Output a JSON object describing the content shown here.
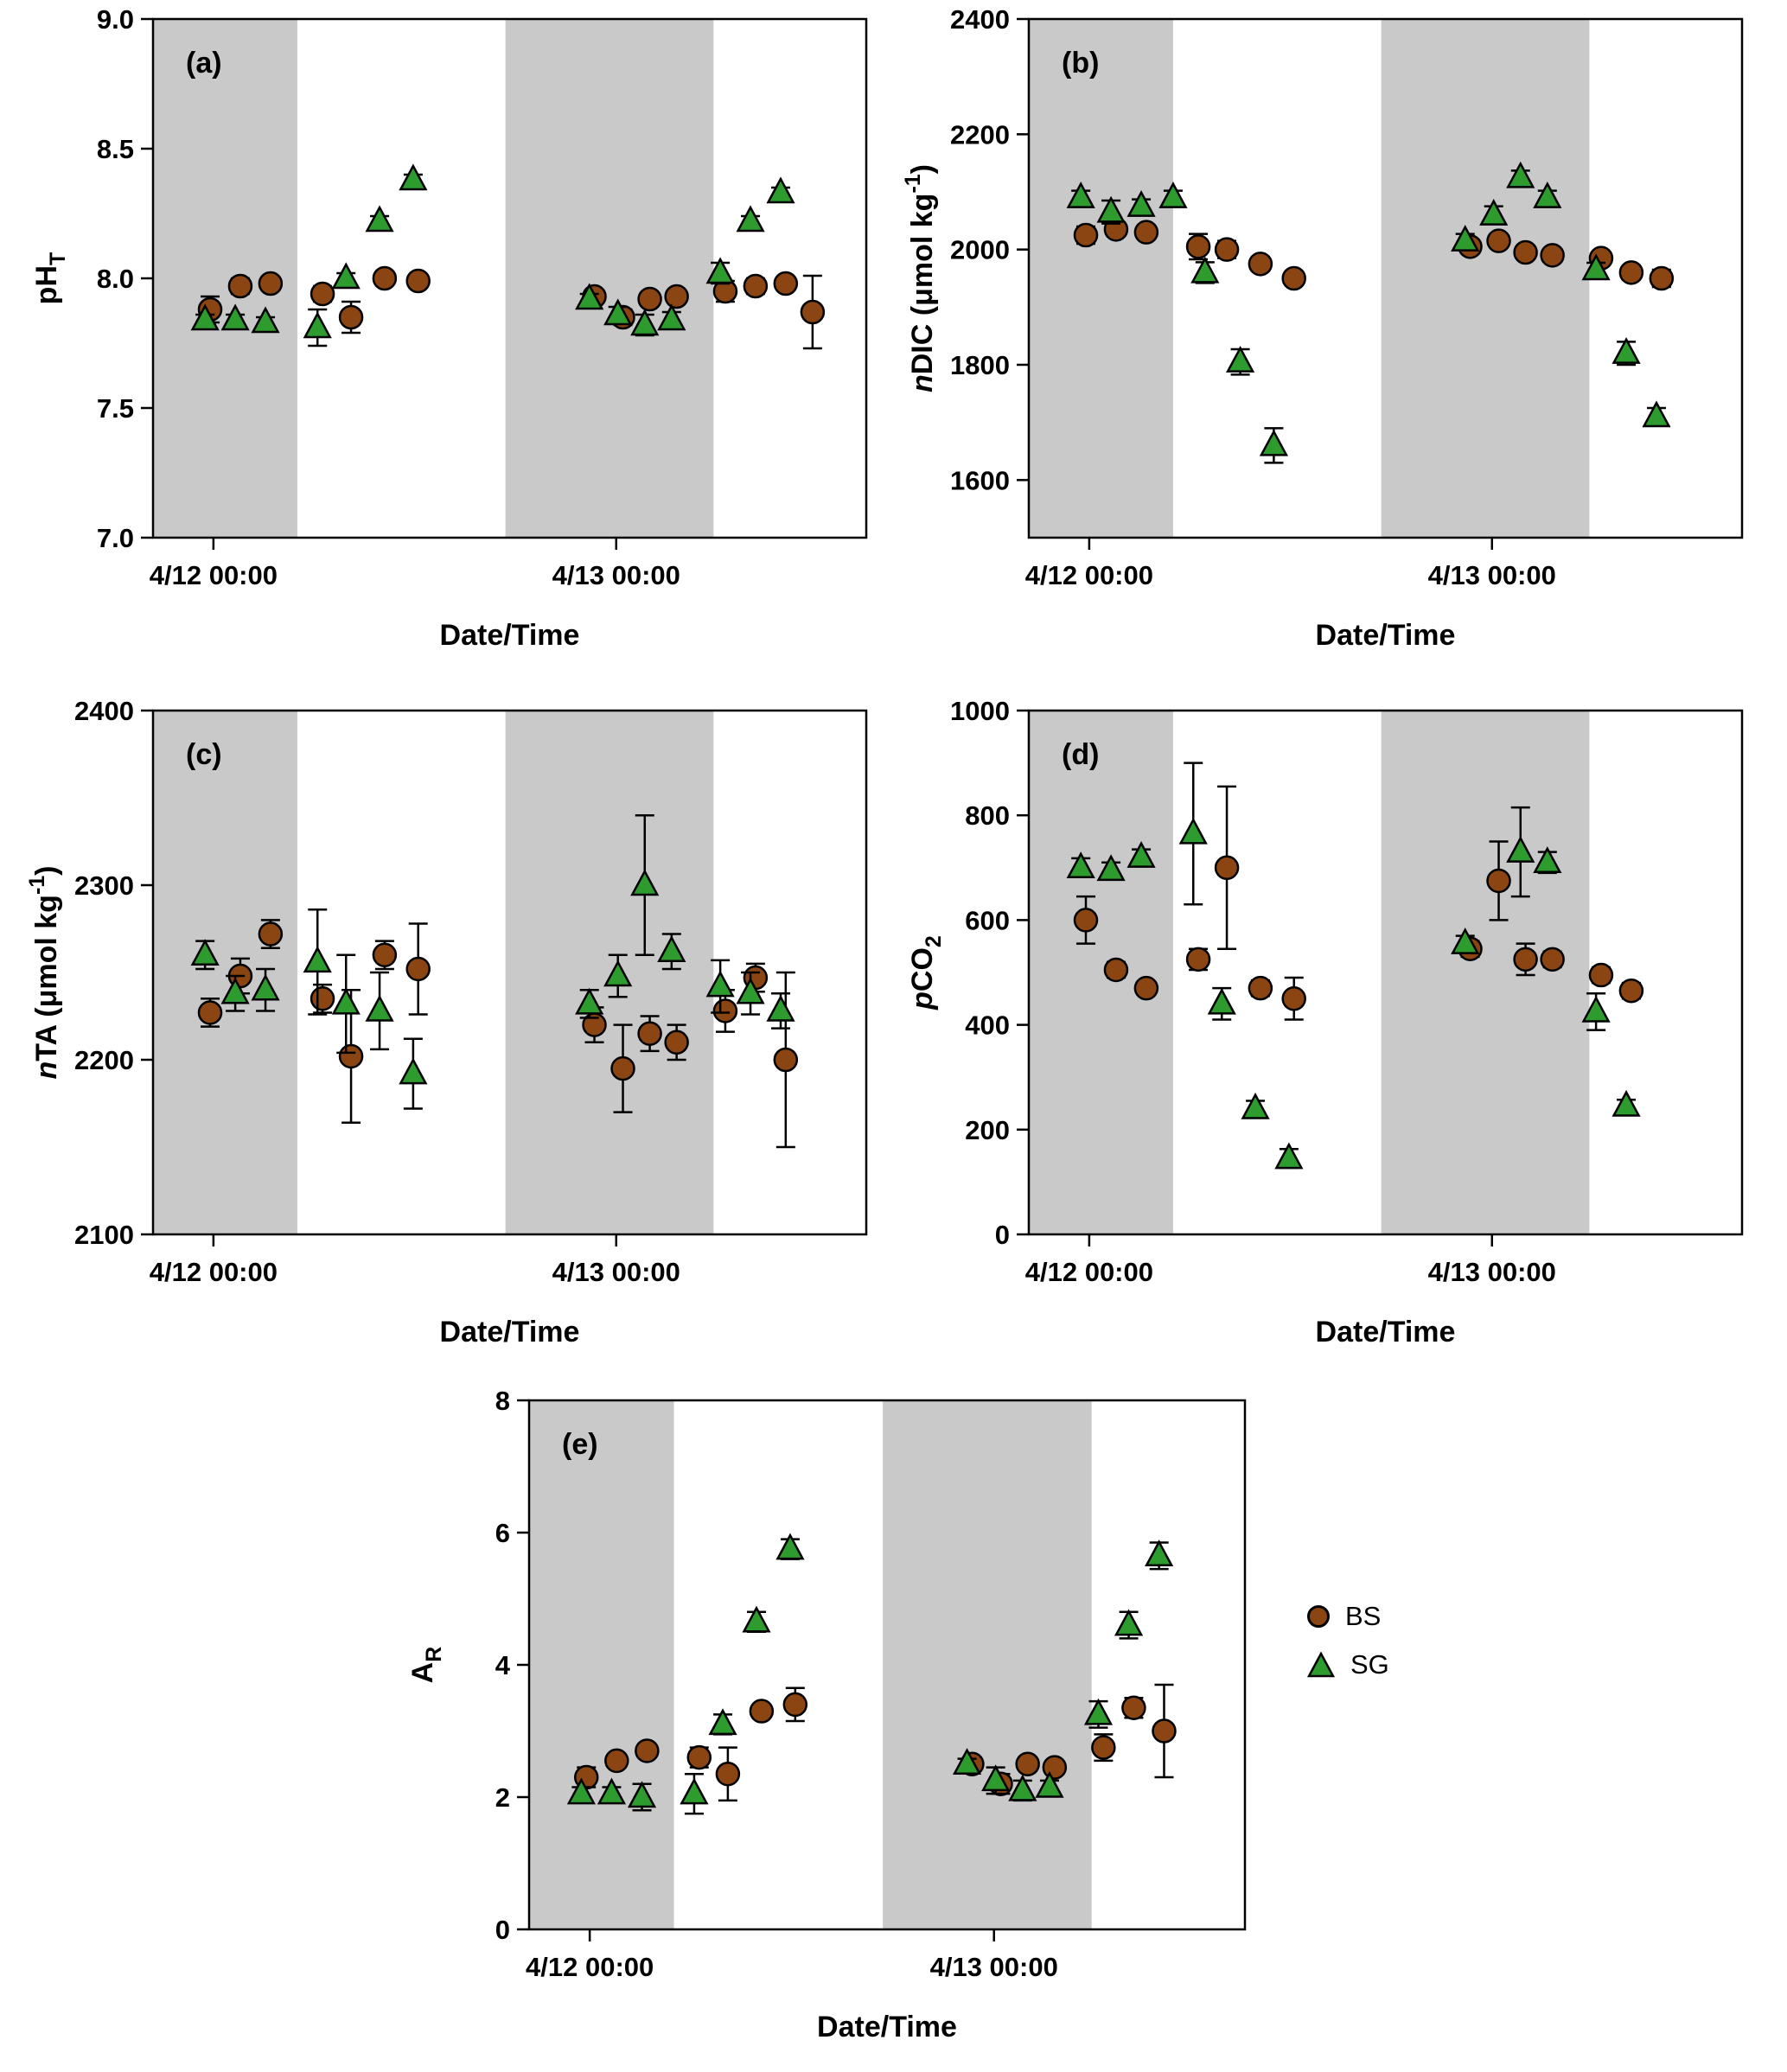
{
  "figure": {
    "background": "#ffffff",
    "band_color": "#c9c9c9",
    "axis_color": "#000000",
    "x_axis": {
      "min": -3.6,
      "max": 38.9,
      "title": "Date/Time",
      "ticks": [
        {
          "t": 0,
          "label": "4/12 00:00"
        },
        {
          "t": 24,
          "label": "4/13 00:00"
        }
      ]
    },
    "night_bands": [
      [
        -3.6,
        5.0
      ],
      [
        17.4,
        29.8
      ]
    ],
    "series_styles": {
      "BS": {
        "color": "#8B4513",
        "marker": "circle"
      },
      "SG": {
        "color": "#2E9B2E",
        "marker": "triangle"
      }
    },
    "legend": {
      "items": [
        {
          "label": "BS"
        },
        {
          "label": "SG"
        }
      ]
    }
  },
  "chart_data": [
    {
      "id": "a",
      "type": "scatter",
      "panel_label": "(a)",
      "xlabel": "Date/Time",
      "ylabel_segments": [
        {
          "text": "pH"
        },
        {
          "text": "T",
          "style": "sub"
        }
      ],
      "ylim": [
        7.0,
        9.0
      ],
      "yticks": [
        {
          "v": 7.0,
          "label": "7.0"
        },
        {
          "v": 7.5,
          "label": "7.5"
        },
        {
          "v": 8.0,
          "label": "8.0"
        },
        {
          "v": 8.5,
          "label": "8.5"
        },
        {
          "v": 9.0,
          "label": "9.0"
        }
      ],
      "series": [
        {
          "name": "BS",
          "points": [
            [
              -0.2,
              7.88,
              0.05
            ],
            [
              1.6,
              7.97,
              0.03
            ],
            [
              3.4,
              7.98,
              0.02
            ],
            [
              6.5,
              7.94,
              0.03
            ],
            [
              8.2,
              7.85,
              0.06
            ],
            [
              10.2,
              8.0,
              0.02
            ],
            [
              12.2,
              7.99,
              0.02
            ],
            [
              22.7,
              7.93,
              0.02
            ],
            [
              24.4,
              7.85,
              0.03
            ],
            [
              26.0,
              7.92,
              0.02
            ],
            [
              27.6,
              7.93,
              0.02
            ],
            [
              30.5,
              7.95,
              0.04
            ],
            [
              32.3,
              7.97,
              0.03
            ],
            [
              34.1,
              7.98,
              0.02
            ],
            [
              35.7,
              7.87,
              0.14
            ]
          ]
        },
        {
          "name": "SG",
          "points": [
            [
              -0.5,
              7.84,
              0.02
            ],
            [
              1.3,
              7.84,
              0.02
            ],
            [
              3.1,
              7.83,
              0.02
            ],
            [
              6.2,
              7.81,
              0.07
            ],
            [
              7.9,
              8.0,
              0.02
            ],
            [
              9.9,
              8.22,
              0.02
            ],
            [
              11.9,
              8.38,
              0.02
            ],
            [
              22.4,
              7.92,
              0.02
            ],
            [
              24.1,
              7.86,
              0.03
            ],
            [
              25.7,
              7.82,
              0.04
            ],
            [
              27.3,
              7.84,
              0.03
            ],
            [
              30.2,
              8.02,
              0.04
            ],
            [
              32.0,
              8.22,
              0.02
            ],
            [
              33.8,
              8.33,
              0.02
            ]
          ]
        }
      ]
    },
    {
      "id": "b",
      "type": "scatter",
      "panel_label": "(b)",
      "xlabel": "Date/Time",
      "ylabel_segments": [
        {
          "text": "n",
          "style": "italic"
        },
        {
          "text": "DIC (μmol kg"
        },
        {
          "text": "-1",
          "style": "sup"
        },
        {
          "text": ")"
        }
      ],
      "ylim": [
        1500,
        2400
      ],
      "yticks": [
        {
          "v": 1600,
          "label": "1600"
        },
        {
          "v": 1800,
          "label": "1800"
        },
        {
          "v": 2000,
          "label": "2000"
        },
        {
          "v": 2200,
          "label": "2200"
        },
        {
          "v": 2400,
          "label": "2400"
        }
      ],
      "series": [
        {
          "name": "BS",
          "points": [
            [
              -0.2,
              2025,
              15
            ],
            [
              1.6,
              2035,
              12
            ],
            [
              3.4,
              2030,
              12
            ],
            [
              6.5,
              2005,
              22
            ],
            [
              8.2,
              2000,
              15
            ],
            [
              10.2,
              1975,
              12
            ],
            [
              12.2,
              1950,
              12
            ],
            [
              22.7,
              2005,
              12
            ],
            [
              24.4,
              2015,
              12
            ],
            [
              26.0,
              1995,
              10
            ],
            [
              27.6,
              1990,
              10
            ],
            [
              30.5,
              1985,
              10
            ],
            [
              32.3,
              1960,
              12
            ],
            [
              34.1,
              1950,
              15
            ]
          ]
        },
        {
          "name": "SG",
          "points": [
            [
              -0.5,
              2090,
              12
            ],
            [
              1.3,
              2065,
              20
            ],
            [
              3.1,
              2075,
              12
            ],
            [
              5.0,
              2090,
              12
            ],
            [
              6.9,
              1960,
              18
            ],
            [
              9.0,
              1805,
              22
            ],
            [
              11.0,
              1660,
              30
            ],
            [
              22.4,
              2015,
              12
            ],
            [
              24.1,
              2060,
              15
            ],
            [
              25.7,
              2125,
              12
            ],
            [
              27.3,
              2090,
              12
            ],
            [
              30.2,
              1965,
              12
            ],
            [
              32.0,
              1820,
              20
            ],
            [
              33.8,
              1710,
              15
            ]
          ]
        }
      ]
    },
    {
      "id": "c",
      "type": "scatter",
      "panel_label": "(c)",
      "xlabel": "Date/Time",
      "ylabel_segments": [
        {
          "text": "n",
          "style": "italic"
        },
        {
          "text": "TA (μmol kg"
        },
        {
          "text": "-1",
          "style": "sup"
        },
        {
          "text": ")"
        }
      ],
      "ylim": [
        2100,
        2400
      ],
      "yticks": [
        {
          "v": 2100,
          "label": "2100"
        },
        {
          "v": 2200,
          "label": "2200"
        },
        {
          "v": 2300,
          "label": "2300"
        },
        {
          "v": 2400,
          "label": "2400"
        }
      ],
      "series": [
        {
          "name": "BS",
          "points": [
            [
              -0.2,
              2227,
              8
            ],
            [
              1.6,
              2248,
              10
            ],
            [
              3.4,
              2272,
              8
            ],
            [
              6.5,
              2235,
              8
            ],
            [
              8.2,
              2202,
              38
            ],
            [
              10.2,
              2260,
              8
            ],
            [
              12.2,
              2252,
              26
            ],
            [
              22.7,
              2220,
              10
            ],
            [
              24.4,
              2195,
              25
            ],
            [
              26.0,
              2215,
              10
            ],
            [
              27.6,
              2210,
              10
            ],
            [
              30.5,
              2228,
              12
            ],
            [
              32.3,
              2247,
              8
            ],
            [
              34.1,
              2200,
              50
            ]
          ]
        },
        {
          "name": "SG",
          "points": [
            [
              -0.5,
              2260,
              8
            ],
            [
              1.3,
              2238,
              10
            ],
            [
              3.1,
              2240,
              12
            ],
            [
              6.2,
              2256,
              30
            ],
            [
              7.9,
              2232,
              28
            ],
            [
              9.9,
              2228,
              22
            ],
            [
              11.9,
              2192,
              20
            ],
            [
              22.4,
              2232,
              8
            ],
            [
              24.1,
              2248,
              12
            ],
            [
              25.7,
              2300,
              40
            ],
            [
              27.3,
              2262,
              10
            ],
            [
              30.2,
              2242,
              15
            ],
            [
              32.0,
              2238,
              12
            ],
            [
              33.8,
              2228,
              10
            ]
          ]
        }
      ]
    },
    {
      "id": "d",
      "type": "scatter",
      "panel_label": "(d)",
      "xlabel": "Date/Time",
      "ylabel_segments": [
        {
          "text": "p",
          "style": "italic"
        },
        {
          "text": "CO"
        },
        {
          "text": "2",
          "style": "sub"
        }
      ],
      "ylim": [
        0,
        1000
      ],
      "yticks": [
        {
          "v": 0,
          "label": "0"
        },
        {
          "v": 200,
          "label": "200"
        },
        {
          "v": 400,
          "label": "400"
        },
        {
          "v": 600,
          "label": "600"
        },
        {
          "v": 800,
          "label": "800"
        },
        {
          "v": 1000,
          "label": "1000"
        }
      ],
      "series": [
        {
          "name": "BS",
          "points": [
            [
              -0.2,
              600,
              45
            ],
            [
              1.6,
              505,
              15
            ],
            [
              3.4,
              470,
              12
            ],
            [
              6.5,
              525,
              20
            ],
            [
              8.2,
              700,
              155
            ],
            [
              10.2,
              470,
              15
            ],
            [
              12.2,
              450,
              40
            ],
            [
              22.7,
              545,
              15
            ],
            [
              24.4,
              675,
              75
            ],
            [
              26.0,
              525,
              30
            ],
            [
              27.6,
              525,
              15
            ],
            [
              30.5,
              495,
              15
            ],
            [
              32.3,
              465,
              15
            ]
          ]
        },
        {
          "name": "SG",
          "points": [
            [
              -0.5,
              700,
              18
            ],
            [
              1.3,
              695,
              15
            ],
            [
              3.1,
              720,
              15
            ],
            [
              6.2,
              765,
              135
            ],
            [
              7.9,
              440,
              30
            ],
            [
              9.9,
              240,
              15
            ],
            [
              11.9,
              145,
              18
            ],
            [
              22.4,
              555,
              15
            ],
            [
              25.7,
              730,
              85
            ],
            [
              27.3,
              710,
              20
            ],
            [
              30.2,
              425,
              35
            ],
            [
              32.0,
              245,
              12
            ]
          ]
        }
      ]
    },
    {
      "id": "e",
      "type": "scatter",
      "panel_label": "(e)",
      "xlabel": "Date/Time",
      "ylabel_segments": [
        {
          "text": "A"
        },
        {
          "text": "R",
          "style": "sub"
        }
      ],
      "ylim": [
        0,
        8
      ],
      "yticks": [
        {
          "v": 0,
          "label": "0"
        },
        {
          "v": 2,
          "label": "2"
        },
        {
          "v": 4,
          "label": "4"
        },
        {
          "v": 6,
          "label": "6"
        },
        {
          "v": 8,
          "label": "8"
        }
      ],
      "series": [
        {
          "name": "BS",
          "points": [
            [
              -0.2,
              2.3,
              0.15
            ],
            [
              1.6,
              2.55,
              0.1
            ],
            [
              3.4,
              2.7,
              0.1
            ],
            [
              6.5,
              2.6,
              0.15
            ],
            [
              8.2,
              2.35,
              0.4
            ],
            [
              10.2,
              3.3,
              0.1
            ],
            [
              12.2,
              3.4,
              0.25
            ],
            [
              22.7,
              2.5,
              0.1
            ],
            [
              24.4,
              2.2,
              0.15
            ],
            [
              26.0,
              2.5,
              0.1
            ],
            [
              27.6,
              2.45,
              0.1
            ],
            [
              30.5,
              2.75,
              0.2
            ],
            [
              32.3,
              3.35,
              0.15
            ],
            [
              34.1,
              3.0,
              0.7
            ]
          ]
        },
        {
          "name": "SG",
          "points": [
            [
              -0.5,
              2.05,
              0.1
            ],
            [
              1.3,
              2.05,
              0.1
            ],
            [
              3.1,
              2.0,
              0.2
            ],
            [
              6.2,
              2.05,
              0.3
            ],
            [
              7.9,
              3.1,
              0.15
            ],
            [
              9.9,
              4.65,
              0.15
            ],
            [
              11.9,
              5.75,
              0.15
            ],
            [
              22.4,
              2.5,
              0.08
            ],
            [
              24.1,
              2.25,
              0.2
            ],
            [
              25.7,
              2.1,
              0.15
            ],
            [
              27.3,
              2.15,
              0.1
            ],
            [
              30.2,
              3.25,
              0.2
            ],
            [
              32.0,
              4.6,
              0.2
            ],
            [
              33.8,
              5.65,
              0.2
            ]
          ]
        }
      ]
    }
  ]
}
